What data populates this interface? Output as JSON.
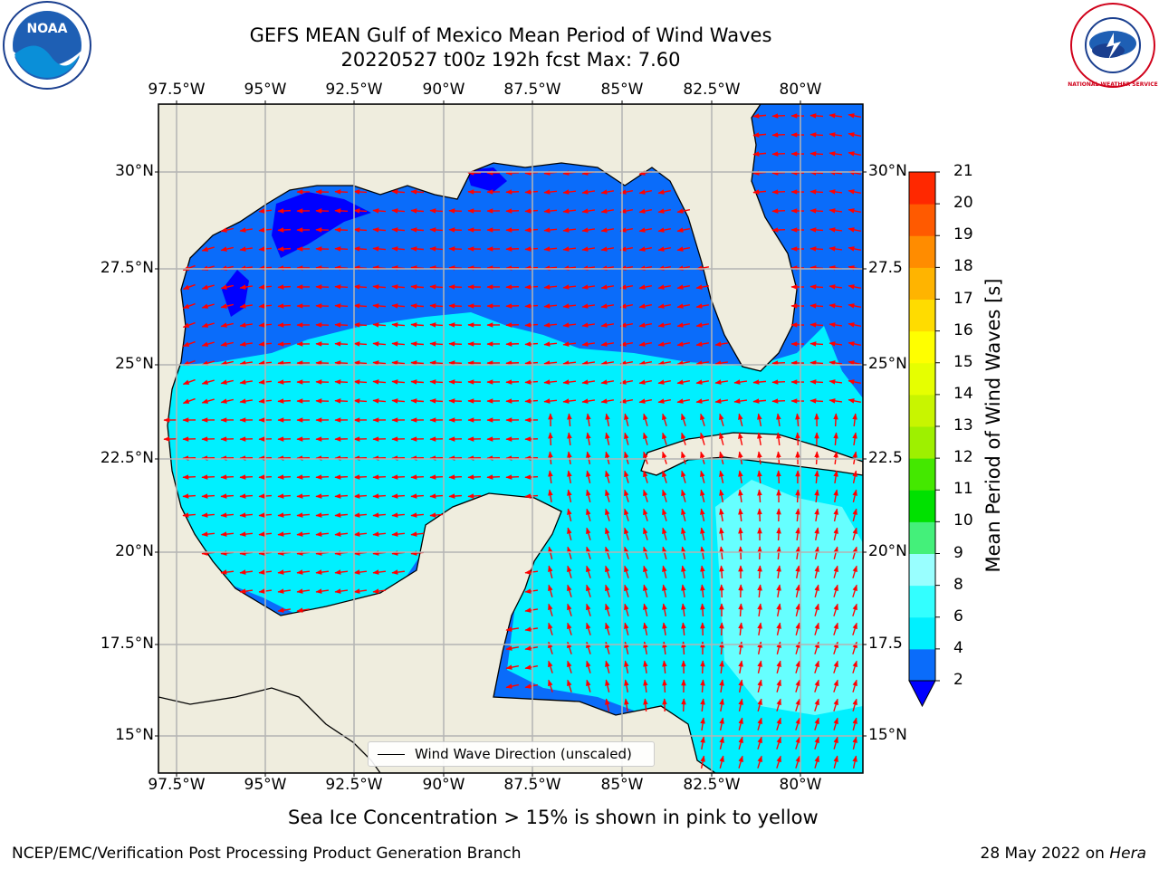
{
  "header": {
    "title_line1": "GEFS MEAN Gulf of Mexico Mean Period of Wind Waves",
    "title_line2": "20220527 t00z 192h fcst   Max: 7.60"
  },
  "logos": {
    "noaa_text": "NOAA",
    "nws_text": "NATIONAL WEATHER SERVICE"
  },
  "map": {
    "lon_ticks": [
      "97.5°W",
      "95°W",
      "92.5°W",
      "90°W",
      "87.5°W",
      "85°W",
      "82.5°W",
      "80°W"
    ],
    "lat_ticks_left": [
      "30°N",
      "27.5°N",
      "25°N",
      "22.5°N",
      "20°N",
      "17.5°N",
      "15°N"
    ],
    "lat_ticks_right": [
      "30°N",
      "27.5",
      "25°N",
      "22.5",
      "20°N",
      "17.5",
      "15°N"
    ],
    "legend_label": "Wind Wave Direction (unscaled)",
    "land_color": "#efedde",
    "grid_color": "#b4b4b4",
    "arrow_color": "#ff0000"
  },
  "colorbar": {
    "title": "Mean Period of Wind Waves [s]",
    "ticks": [
      "2",
      "4",
      "6",
      "8",
      "9",
      "10",
      "11",
      "12",
      "13",
      "14",
      "15",
      "16",
      "17",
      "18",
      "19",
      "20",
      "21"
    ],
    "colors": [
      "#0a6cfa",
      "#00f0ff",
      "#33ffff",
      "#99ffff",
      "#44f07a",
      "#00e100",
      "#44e800",
      "#9ef000",
      "#c8f500",
      "#e6ff00",
      "#ffff00",
      "#ffdc00",
      "#ffb400",
      "#ff8c00",
      "#ff5a00",
      "#ff2800"
    ],
    "underflow_color": "#0000ff"
  },
  "footer": {
    "note": "Sea Ice Concentration > 15% is shown in pink to yellow",
    "left": "NCEP/EMC/Verification Post Processing Product Generation Branch",
    "date": "28 May 2022 on ",
    "host": "Hera"
  }
}
